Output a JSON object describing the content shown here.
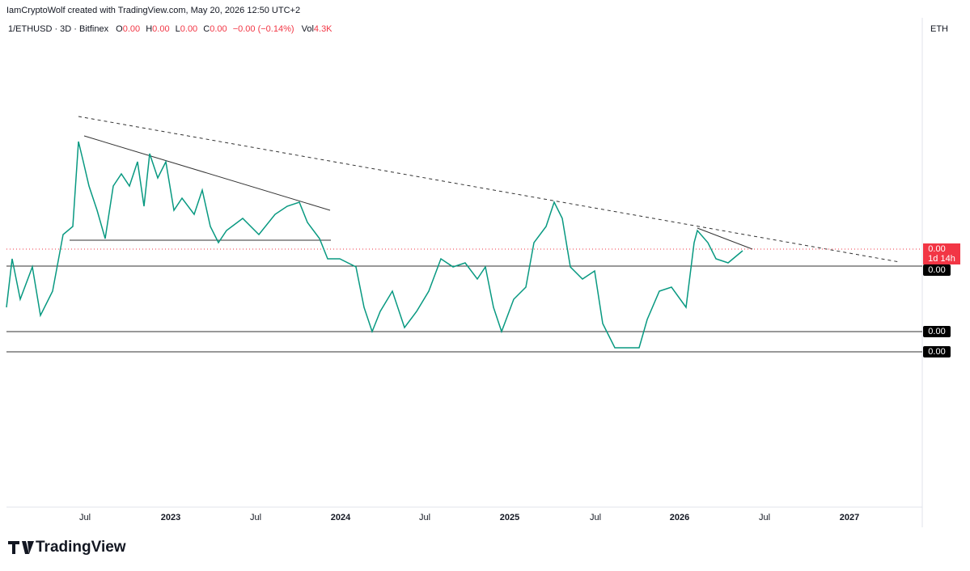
{
  "header": {
    "credit": "IamCryptoWolf created with TradingView.com, May 20, 2026 12:50 UTC+2",
    "symbol": "1/ETHUSD · 3D · Bitfinex",
    "ohlc": [
      {
        "key": "O",
        "value": "0.00"
      },
      {
        "key": "H",
        "value": "0.00"
      },
      {
        "key": "L",
        "value": "0.00"
      },
      {
        "key": "C",
        "value": "0.00"
      }
    ],
    "change": "−0.00 (−0.14%)",
    "volume_key": "Vol",
    "volume": "4.3K"
  },
  "scale_label": "ETH",
  "price_labels": {
    "current": "0.00",
    "countdown": "1d 14h",
    "levels": [
      "0.00",
      "0.00",
      "0.00"
    ]
  },
  "time_axis": [
    "Jul",
    "2023",
    "Jul",
    "2024",
    "Jul",
    "2025",
    "Jul",
    "2026",
    "Jul",
    "2027"
  ],
  "logo": "TradingView"
}
